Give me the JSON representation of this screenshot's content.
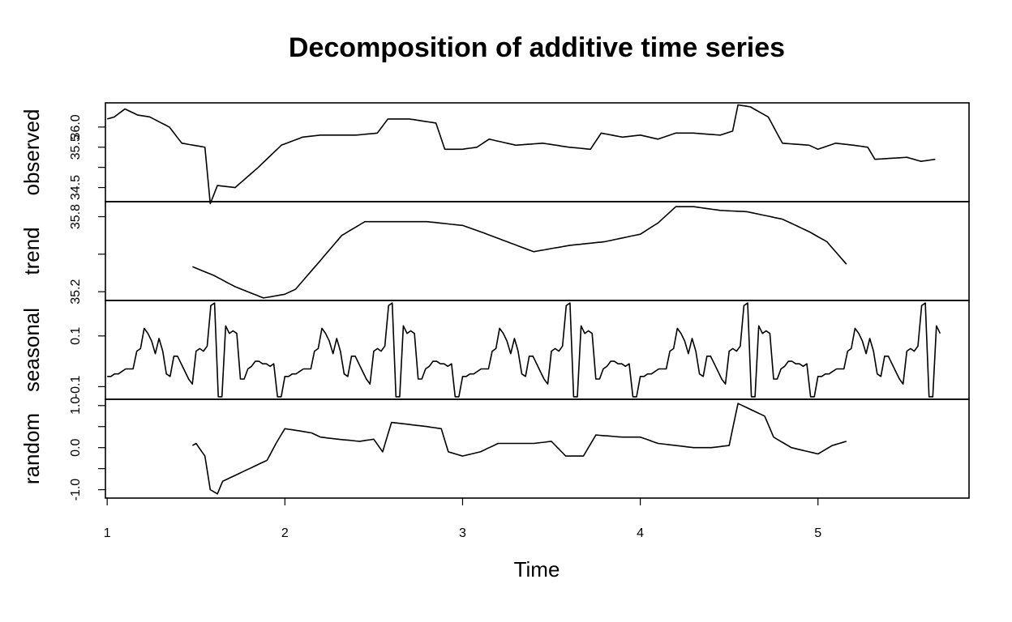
{
  "chart_data": {
    "type": "line",
    "title": "Decomposition of additive time series",
    "xlabel": "Time",
    "xlim": [
      0.99,
      5.85
    ],
    "x_ticks": [
      1,
      2,
      3,
      4,
      5
    ],
    "frequency": 48,
    "panels": [
      {
        "name": "observed",
        "ylabel": "observed",
        "ylim": [
          34.15,
          36.6
        ],
        "y_ticks": [
          {
            "value": 34.5,
            "label": "34.5"
          },
          {
            "value": 35.0,
            "label": ""
          },
          {
            "value": 35.5,
            "label": "35.5"
          },
          {
            "value": 36.0,
            "label": "36.0"
          }
        ],
        "start": 1,
        "anchors": [
          [
            1.0,
            36.2
          ],
          [
            1.04,
            36.25
          ],
          [
            1.1,
            36.45
          ],
          [
            1.17,
            36.3
          ],
          [
            1.24,
            36.25
          ],
          [
            1.35,
            36.0
          ],
          [
            1.42,
            35.6
          ],
          [
            1.55,
            35.5
          ],
          [
            1.58,
            34.1
          ],
          [
            1.62,
            34.55
          ],
          [
            1.72,
            34.5
          ],
          [
            1.85,
            35.0
          ],
          [
            1.98,
            35.55
          ],
          [
            2.1,
            35.75
          ],
          [
            2.2,
            35.8
          ],
          [
            2.4,
            35.8
          ],
          [
            2.52,
            35.85
          ],
          [
            2.58,
            36.2
          ],
          [
            2.7,
            36.2
          ],
          [
            2.85,
            36.1
          ],
          [
            2.9,
            35.45
          ],
          [
            3.0,
            35.45
          ],
          [
            3.08,
            35.5
          ],
          [
            3.15,
            35.7
          ],
          [
            3.3,
            35.55
          ],
          [
            3.45,
            35.6
          ],
          [
            3.6,
            35.5
          ],
          [
            3.72,
            35.45
          ],
          [
            3.78,
            35.85
          ],
          [
            3.9,
            35.75
          ],
          [
            4.0,
            35.8
          ],
          [
            4.1,
            35.7
          ],
          [
            4.2,
            35.85
          ],
          [
            4.3,
            35.85
          ],
          [
            4.45,
            35.8
          ],
          [
            4.52,
            35.9
          ],
          [
            4.55,
            36.55
          ],
          [
            4.62,
            36.5
          ],
          [
            4.72,
            36.25
          ],
          [
            4.8,
            35.6
          ],
          [
            4.95,
            35.55
          ],
          [
            5.0,
            35.45
          ],
          [
            5.1,
            35.6
          ],
          [
            5.2,
            35.55
          ],
          [
            5.28,
            35.5
          ],
          [
            5.32,
            35.2
          ],
          [
            5.5,
            35.25
          ],
          [
            5.58,
            35.15
          ],
          [
            5.66,
            35.2
          ]
        ]
      },
      {
        "name": "trend",
        "ylabel": "trend",
        "ylim": [
          35.13,
          35.92
        ],
        "y_ticks": [
          {
            "value": 35.2,
            "label": "35.2"
          },
          {
            "value": 35.5,
            "label": ""
          },
          {
            "value": 35.8,
            "label": "35.8"
          }
        ],
        "start": 1.48,
        "anchors": [
          [
            1.48,
            35.4
          ],
          [
            1.6,
            35.33
          ],
          [
            1.72,
            35.24
          ],
          [
            1.88,
            35.15
          ],
          [
            2.0,
            35.18
          ],
          [
            2.06,
            35.22
          ],
          [
            2.2,
            35.45
          ],
          [
            2.32,
            35.65
          ],
          [
            2.45,
            35.76
          ],
          [
            2.6,
            35.76
          ],
          [
            2.8,
            35.76
          ],
          [
            3.0,
            35.73
          ],
          [
            3.1,
            35.68
          ],
          [
            3.25,
            35.6
          ],
          [
            3.4,
            35.52
          ],
          [
            3.6,
            35.57
          ],
          [
            3.8,
            35.6
          ],
          [
            4.0,
            35.66
          ],
          [
            4.1,
            35.75
          ],
          [
            4.2,
            35.88
          ],
          [
            4.3,
            35.88
          ],
          [
            4.45,
            35.85
          ],
          [
            4.6,
            35.84
          ],
          [
            4.8,
            35.78
          ],
          [
            4.95,
            35.68
          ],
          [
            5.05,
            35.6
          ],
          [
            5.16,
            35.42
          ]
        ]
      },
      {
        "name": "seasonal",
        "ylabel": "seasonal",
        "ylim": [
          -0.15,
          0.24
        ],
        "y_ticks": [
          {
            "value": -0.1,
            "label": "-0.1"
          },
          {
            "value": 0.1,
            "label": "0.1"
          }
        ],
        "start": 1,
        "period_pattern": [
          -0.06,
          -0.06,
          -0.05,
          -0.05,
          -0.04,
          -0.03,
          -0.03,
          -0.03,
          0.04,
          0.05,
          0.13,
          0.11,
          0.08,
          0.03,
          0.09,
          0.04,
          -0.05,
          -0.06,
          0.02,
          0.02,
          -0.01,
          -0.04,
          -0.07,
          -0.09,
          0.04,
          0.05,
          0.04,
          0.06,
          0.22,
          0.23,
          -0.14,
          -0.14,
          0.14,
          0.11,
          0.12,
          0.11,
          -0.07,
          -0.07,
          -0.03,
          -0.02,
          0.0,
          0.0,
          -0.01,
          -0.01,
          -0.02,
          -0.01,
          -0.14,
          -0.14
        ]
      },
      {
        "name": "random",
        "ylabel": "random",
        "ylim": [
          -1.2,
          1.15
        ],
        "y_ticks": [
          {
            "value": -1.0,
            "label": "-1.0"
          },
          {
            "value": -0.5,
            "label": ""
          },
          {
            "value": 0.0,
            "label": "0.0"
          },
          {
            "value": 0.5,
            "label": ""
          },
          {
            "value": 1.0,
            "label": "1.0"
          }
        ],
        "start": 1.48,
        "anchors": [
          [
            1.48,
            0.05
          ],
          [
            1.5,
            0.1
          ],
          [
            1.55,
            -0.2
          ],
          [
            1.58,
            -1.0
          ],
          [
            1.62,
            -1.1
          ],
          [
            1.65,
            -0.8
          ],
          [
            1.7,
            -0.7
          ],
          [
            1.8,
            -0.5
          ],
          [
            1.9,
            -0.3
          ],
          [
            1.95,
            0.1
          ],
          [
            2.0,
            0.45
          ],
          [
            2.08,
            0.4
          ],
          [
            2.15,
            0.35
          ],
          [
            2.2,
            0.25
          ],
          [
            2.3,
            0.2
          ],
          [
            2.42,
            0.15
          ],
          [
            2.5,
            0.2
          ],
          [
            2.55,
            -0.1
          ],
          [
            2.6,
            0.6
          ],
          [
            2.7,
            0.55
          ],
          [
            2.8,
            0.5
          ],
          [
            2.88,
            0.45
          ],
          [
            2.92,
            -0.1
          ],
          [
            3.0,
            -0.2
          ],
          [
            3.1,
            -0.1
          ],
          [
            3.2,
            0.1
          ],
          [
            3.4,
            0.1
          ],
          [
            3.5,
            0.15
          ],
          [
            3.58,
            -0.2
          ],
          [
            3.68,
            -0.2
          ],
          [
            3.75,
            0.3
          ],
          [
            3.9,
            0.25
          ],
          [
            4.0,
            0.25
          ],
          [
            4.1,
            0.1
          ],
          [
            4.2,
            0.05
          ],
          [
            4.3,
            0.0
          ],
          [
            4.4,
            0.0
          ],
          [
            4.5,
            0.05
          ],
          [
            4.55,
            1.05
          ],
          [
            4.6,
            0.95
          ],
          [
            4.7,
            0.75
          ],
          [
            4.75,
            0.25
          ],
          [
            4.85,
            0.0
          ],
          [
            4.95,
            -0.1
          ],
          [
            5.0,
            -0.15
          ],
          [
            5.08,
            0.05
          ],
          [
            5.16,
            0.15
          ]
        ]
      }
    ]
  }
}
